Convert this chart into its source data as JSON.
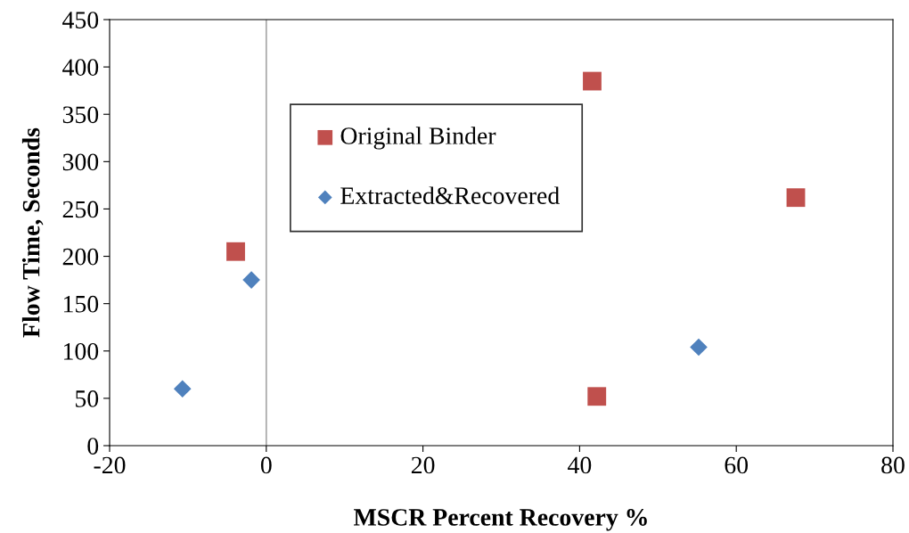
{
  "chart_data": {
    "type": "scatter",
    "xlabel": "MSCR Percent Recovery %",
    "ylabel": "Flow Time, Seconds",
    "xlim": [
      -20,
      80
    ],
    "xticks": [
      -20,
      0,
      20,
      40,
      60,
      80
    ],
    "ylim": [
      0,
      450
    ],
    "yticks": [
      0,
      50,
      100,
      150,
      200,
      250,
      300,
      350,
      400,
      450
    ],
    "grid": false,
    "legend": "top left",
    "ref_lines": [
      {
        "axis": "x",
        "value": 0,
        "color": "#a6a6a6"
      }
    ],
    "series": [
      {
        "name": "Original Binder",
        "color": "#c0504d",
        "marker": "square",
        "x": [
          41.6,
          67.6,
          -3.9,
          42.2
        ],
        "values": [
          385,
          262,
          205,
          52
        ]
      },
      {
        "name": "Extracted&Recovered",
        "color": "#4f81bd",
        "marker": "diamond",
        "x": [
          -10.7,
          -1.9,
          55.2
        ],
        "values": [
          60,
          175,
          104
        ]
      }
    ]
  }
}
